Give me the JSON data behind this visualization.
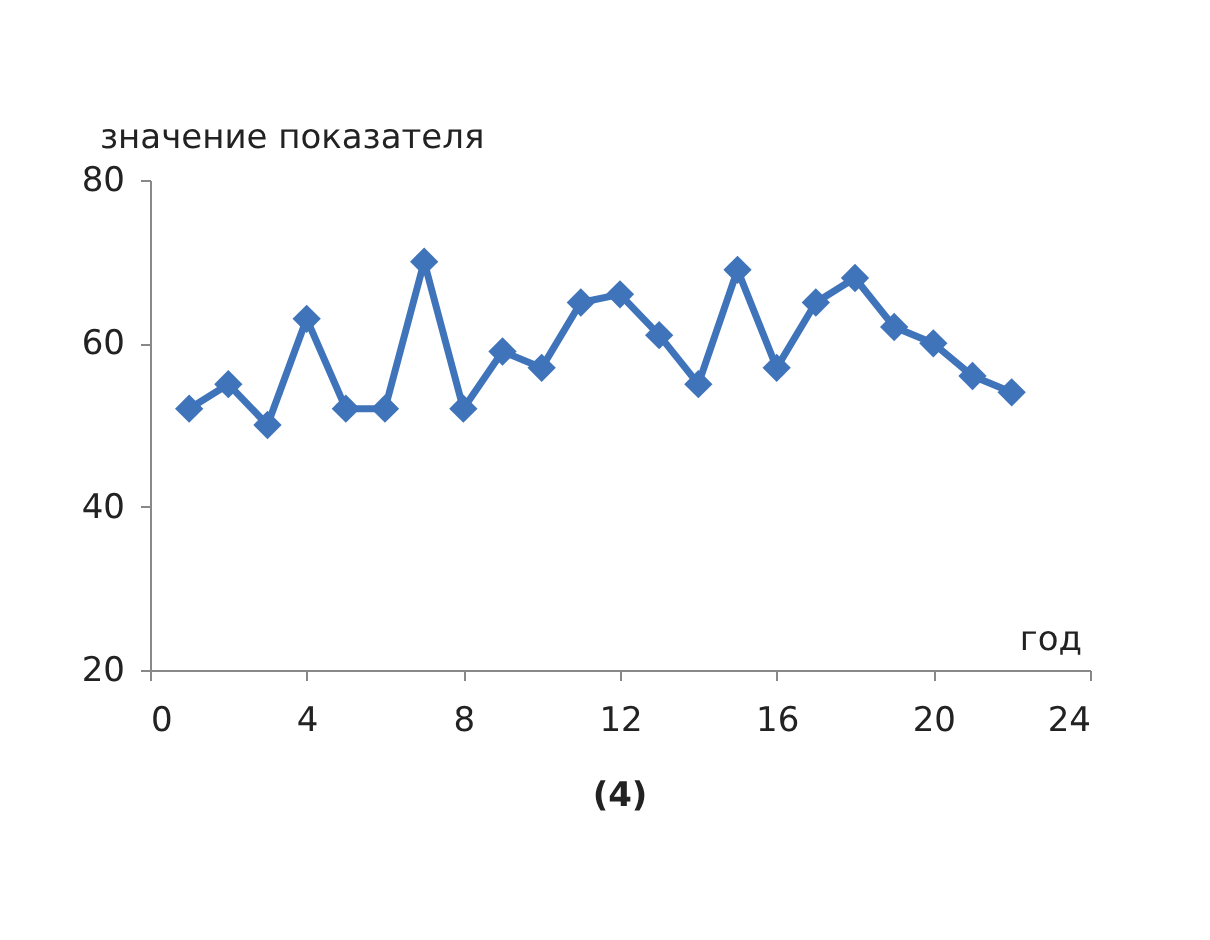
{
  "chart_data": {
    "type": "line",
    "ylabel": "значение показателя",
    "xlabel": "год",
    "annotations": [
      "(4)"
    ],
    "x": [
      1,
      2,
      3,
      4,
      5,
      6,
      7,
      8,
      9,
      10,
      11,
      12,
      13,
      14,
      15,
      16,
      17,
      18,
      19,
      20,
      21,
      22
    ],
    "series": [
      {
        "color": "#3f74bb",
        "values": [
          52,
          55,
          50,
          63,
          52,
          52,
          70,
          52,
          59,
          57,
          65,
          66,
          61,
          55,
          69,
          57,
          65,
          68,
          62,
          60,
          56,
          54
        ]
      }
    ],
    "xlim": [
      0,
      24
    ],
    "xticks": [
      0,
      4,
      8,
      12,
      16,
      20,
      24
    ],
    "ylim": [
      20,
      80
    ],
    "yticks": [
      20,
      40,
      60,
      80
    ],
    "grid": false,
    "marker": "diamond",
    "line_style": "solid"
  }
}
